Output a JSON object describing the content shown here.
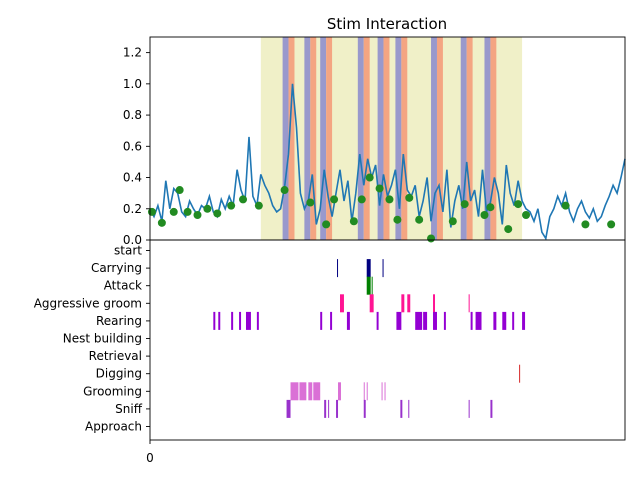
{
  "chart_data": {
    "type": "line",
    "title": "Stim Interaction",
    "top_panel": {
      "ylim": [
        0,
        1.3
      ],
      "yticks": [
        "0.0",
        "0.2",
        "0.4",
        "0.6",
        "0.8",
        "1.0",
        "1.2"
      ],
      "ytick_values": [
        0,
        0.2,
        0.4,
        0.6,
        0.8,
        1.0,
        1.2
      ],
      "xlim": [
        0,
        240
      ],
      "line_color": "#1f77b4",
      "marker_color": "#228B22",
      "stim_window_color": "#f0f0c8",
      "on_color": "#9999cc",
      "off_color": "#f4a582",
      "stim_window": [
        56,
        188
      ],
      "stim_blocks": [
        [
          67,
          73
        ],
        [
          78,
          84
        ],
        [
          86,
          92
        ],
        [
          105,
          111
        ],
        [
          115,
          121
        ],
        [
          124,
          130
        ],
        [
          142,
          148
        ],
        [
          157,
          163
        ],
        [
          169,
          175
        ]
      ],
      "series": [
        {
          "x": [
            0,
            2,
            4,
            6,
            8,
            10,
            12,
            14,
            16,
            18,
            20,
            22,
            24,
            26,
            28,
            30,
            32,
            34,
            36,
            38,
            40,
            42,
            44,
            46,
            48,
            50,
            52,
            54,
            56,
            58,
            60,
            62,
            64,
            66,
            68,
            70,
            72,
            74,
            76,
            78,
            80,
            82,
            84,
            86,
            88,
            90,
            92,
            94,
            96,
            98,
            100,
            102,
            104,
            106,
            108,
            110,
            112,
            114,
            116,
            118,
            120,
            122,
            124,
            126,
            128,
            130,
            132,
            134,
            136,
            138,
            140,
            142,
            144,
            146,
            148,
            150,
            152,
            154,
            156,
            158,
            160,
            162,
            164,
            166,
            168,
            170,
            172,
            174,
            176,
            178,
            180,
            182,
            184,
            186,
            188,
            190,
            192,
            194,
            196,
            198,
            200,
            202,
            204,
            206,
            208,
            210,
            212,
            214,
            216,
            218,
            220,
            222,
            224,
            226,
            228,
            230,
            232,
            234,
            236,
            238,
            240
          ],
          "y": [
            0.2,
            0.15,
            0.22,
            0.12,
            0.38,
            0.2,
            0.33,
            0.3,
            0.18,
            0.15,
            0.25,
            0.2,
            0.16,
            0.22,
            0.2,
            0.28,
            0.18,
            0.15,
            0.26,
            0.2,
            0.28,
            0.22,
            0.45,
            0.32,
            0.25,
            0.66,
            0.28,
            0.22,
            0.42,
            0.35,
            0.3,
            0.22,
            0.18,
            0.2,
            0.34,
            0.55,
            1.0,
            0.72,
            0.3,
            0.2,
            0.25,
            0.42,
            0.1,
            0.2,
            0.45,
            0.28,
            0.15,
            0.3,
            0.45,
            0.25,
            0.38,
            0.12,
            0.3,
            0.55,
            0.35,
            0.52,
            0.4,
            0.48,
            0.22,
            0.42,
            0.28,
            0.35,
            0.45,
            0.2,
            0.55,
            0.32,
            0.28,
            0.35,
            0.15,
            0.25,
            0.4,
            0.12,
            0.3,
            0.35,
            0.18,
            0.45,
            0.08,
            0.25,
            0.35,
            0.2,
            0.5,
            0.25,
            0.32,
            0.15,
            0.45,
            0.18,
            0.24,
            0.4,
            0.3,
            0.1,
            0.48,
            0.3,
            0.22,
            0.38,
            0.25,
            0.2,
            0.18,
            0.12,
            0.2,
            0.05,
            0.01,
            0.15,
            0.2,
            0.28,
            0.22,
            0.3,
            0.18,
            0.12,
            0.2,
            0.25,
            0.18,
            0.14,
            0.2,
            0.12,
            0.15,
            0.22,
            0.28,
            0.35,
            0.3,
            0.4,
            0.52
          ]
        }
      ],
      "markers": {
        "x": [
          1,
          6,
          12,
          15,
          19,
          24,
          29,
          34,
          41,
          47,
          55,
          68,
          81,
          89,
          93,
          103,
          107,
          111,
          116,
          121,
          125,
          131,
          136,
          142,
          153,
          159,
          169,
          172,
          181,
          186,
          190,
          210,
          220,
          233
        ],
        "y": [
          0.18,
          0.11,
          0.18,
          0.32,
          0.18,
          0.16,
          0.2,
          0.17,
          0.22,
          0.26,
          0.22,
          0.32,
          0.24,
          0.1,
          0.26,
          0.12,
          0.26,
          0.4,
          0.33,
          0.26,
          0.13,
          0.27,
          0.13,
          0.01,
          0.12,
          0.23,
          0.16,
          0.21,
          0.07,
          0.23,
          0.16,
          0.22,
          0.1,
          0.1
        ]
      }
    },
    "bottom_panel": {
      "xtick_label": "0",
      "categories": [
        "start",
        "Carrying",
        "Attack",
        "Aggressive groom",
        "Rearing",
        "Nest building",
        "Retrieval",
        "Digging",
        "Grooming",
        "Sniff",
        "Approach"
      ],
      "category_colors": {
        "start": "#000000",
        "Carrying": "#000080",
        "Attack": "#008000",
        "Aggressive groom": "#ff1493",
        "Rearing": "#9400d3",
        "Digging": "#d62728",
        "Grooming": "#da70d6",
        "Sniff": "#9932cc",
        "Approach": "#9932cc"
      },
      "events": {
        "Carrying": [
          [
            94.5,
            95
          ],
          [
            109.5,
            111.5
          ],
          [
            117.5,
            118
          ]
        ],
        "Attack": [
          [
            109.5,
            111.5
          ],
          [
            112,
            112.5
          ]
        ],
        "Aggressive groom": [
          [
            96,
            98
          ],
          [
            111,
            113
          ],
          [
            127,
            128.5
          ],
          [
            130,
            131.5
          ],
          [
            143,
            144
          ],
          [
            161,
            161.5
          ]
        ],
        "Rearing": [
          [
            32,
            33
          ],
          [
            34.5,
            35.5
          ],
          [
            41,
            42
          ],
          [
            45,
            46
          ],
          [
            48.5,
            51
          ],
          [
            54,
            55
          ],
          [
            86,
            87
          ],
          [
            91,
            92
          ],
          [
            99.5,
            101
          ],
          [
            114.5,
            115.5
          ],
          [
            124.5,
            127
          ],
          [
            134,
            137.5
          ],
          [
            138,
            140
          ],
          [
            143,
            145
          ],
          [
            148.5,
            149.5
          ],
          [
            162,
            163
          ],
          [
            164.5,
            167.5
          ],
          [
            173.5,
            175
          ],
          [
            178,
            180
          ],
          [
            183,
            184
          ],
          [
            188,
            189.5
          ]
        ],
        "Digging": [
          [
            186.5,
            187
          ]
        ],
        "Grooming": [
          [
            71,
            75
          ],
          [
            75.5,
            79
          ],
          [
            80,
            82
          ],
          [
            82.5,
            86
          ],
          [
            95,
            96.5
          ],
          [
            108,
            108.5
          ],
          [
            109.5,
            110
          ],
          [
            117,
            117.5
          ],
          [
            118.5,
            119
          ]
        ],
        "Sniff": [
          [
            69,
            71
          ],
          [
            88,
            89
          ],
          [
            90,
            90.5
          ],
          [
            94,
            95
          ],
          [
            108,
            109
          ],
          [
            126.5,
            127.5
          ],
          [
            130.5,
            131
          ],
          [
            161,
            161.5
          ],
          [
            172,
            173
          ]
        ],
        "Approach": []
      }
    }
  }
}
